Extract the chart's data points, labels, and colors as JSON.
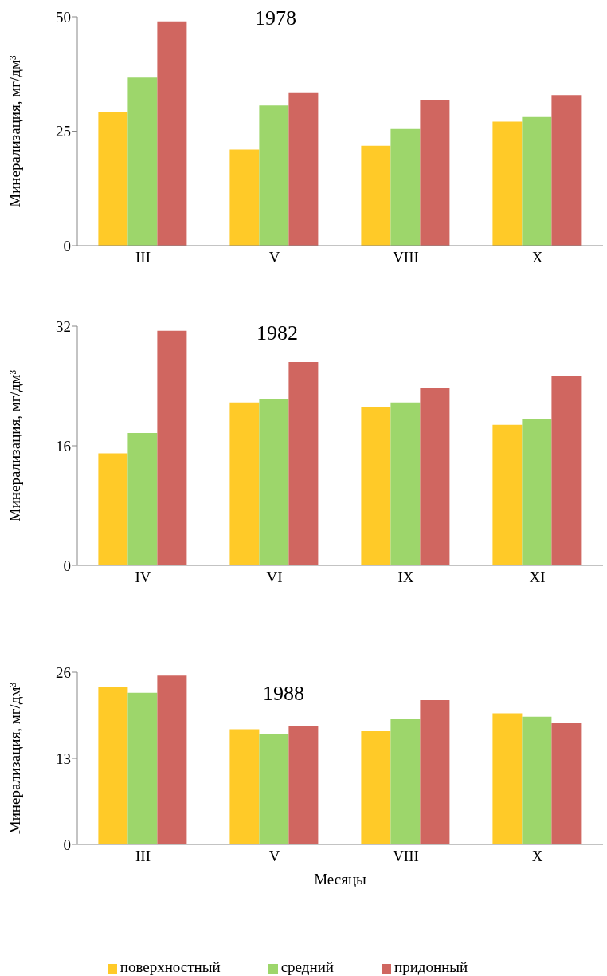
{
  "chart_data": [
    {
      "type": "bar",
      "title": "1978",
      "ylabel": "Минерализация, мг/дм³",
      "categories": [
        "III",
        "V",
        "VIII",
        "X"
      ],
      "series": [
        {
          "color": "#ffca28",
          "values": [
            29.1,
            21.0,
            21.8,
            27.1
          ]
        },
        {
          "color": "#9dd66b",
          "values": [
            36.7,
            30.6,
            25.5,
            28.1
          ]
        },
        {
          "color": "#d06660",
          "values": [
            49.0,
            33.3,
            31.9,
            32.9
          ]
        }
      ],
      "ylim": [
        0,
        50
      ],
      "yticks": [
        0,
        25,
        50
      ],
      "grid": false,
      "legend": false
    },
    {
      "type": "bar",
      "title": "1982",
      "ylabel": "Минерализация, мг/дм³",
      "categories": [
        "IV",
        "VI",
        "IX",
        "XI"
      ],
      "series": [
        {
          "color": "#ffca28",
          "values": [
            15.0,
            21.8,
            21.2,
            18.8
          ]
        },
        {
          "color": "#9dd66b",
          "values": [
            17.7,
            22.3,
            21.8,
            19.6
          ]
        },
        {
          "color": "#d06660",
          "values": [
            31.4,
            27.2,
            23.7,
            25.3
          ]
        }
      ],
      "ylim": [
        0,
        32
      ],
      "yticks": [
        0,
        16,
        32
      ],
      "grid": false,
      "legend": false
    },
    {
      "type": "bar",
      "title": "1988",
      "xlabel": "Месяцы",
      "ylabel": "Минерализация, мг/дм³",
      "categories": [
        "III",
        "V",
        "VIII",
        "X"
      ],
      "series": [
        {
          "name": "поверхностный",
          "color": "#ffca28",
          "values": [
            23.7,
            17.4,
            17.1,
            19.8
          ]
        },
        {
          "name": "средний",
          "color": "#9dd66b",
          "values": [
            22.9,
            16.6,
            18.9,
            19.3
          ]
        },
        {
          "name": "придонный",
          "color": "#d06660",
          "values": [
            25.5,
            17.8,
            21.8,
            18.3
          ]
        }
      ],
      "ylim": [
        0,
        26
      ],
      "yticks": [
        0,
        13,
        26
      ],
      "grid": false,
      "legend": "bottom"
    }
  ]
}
